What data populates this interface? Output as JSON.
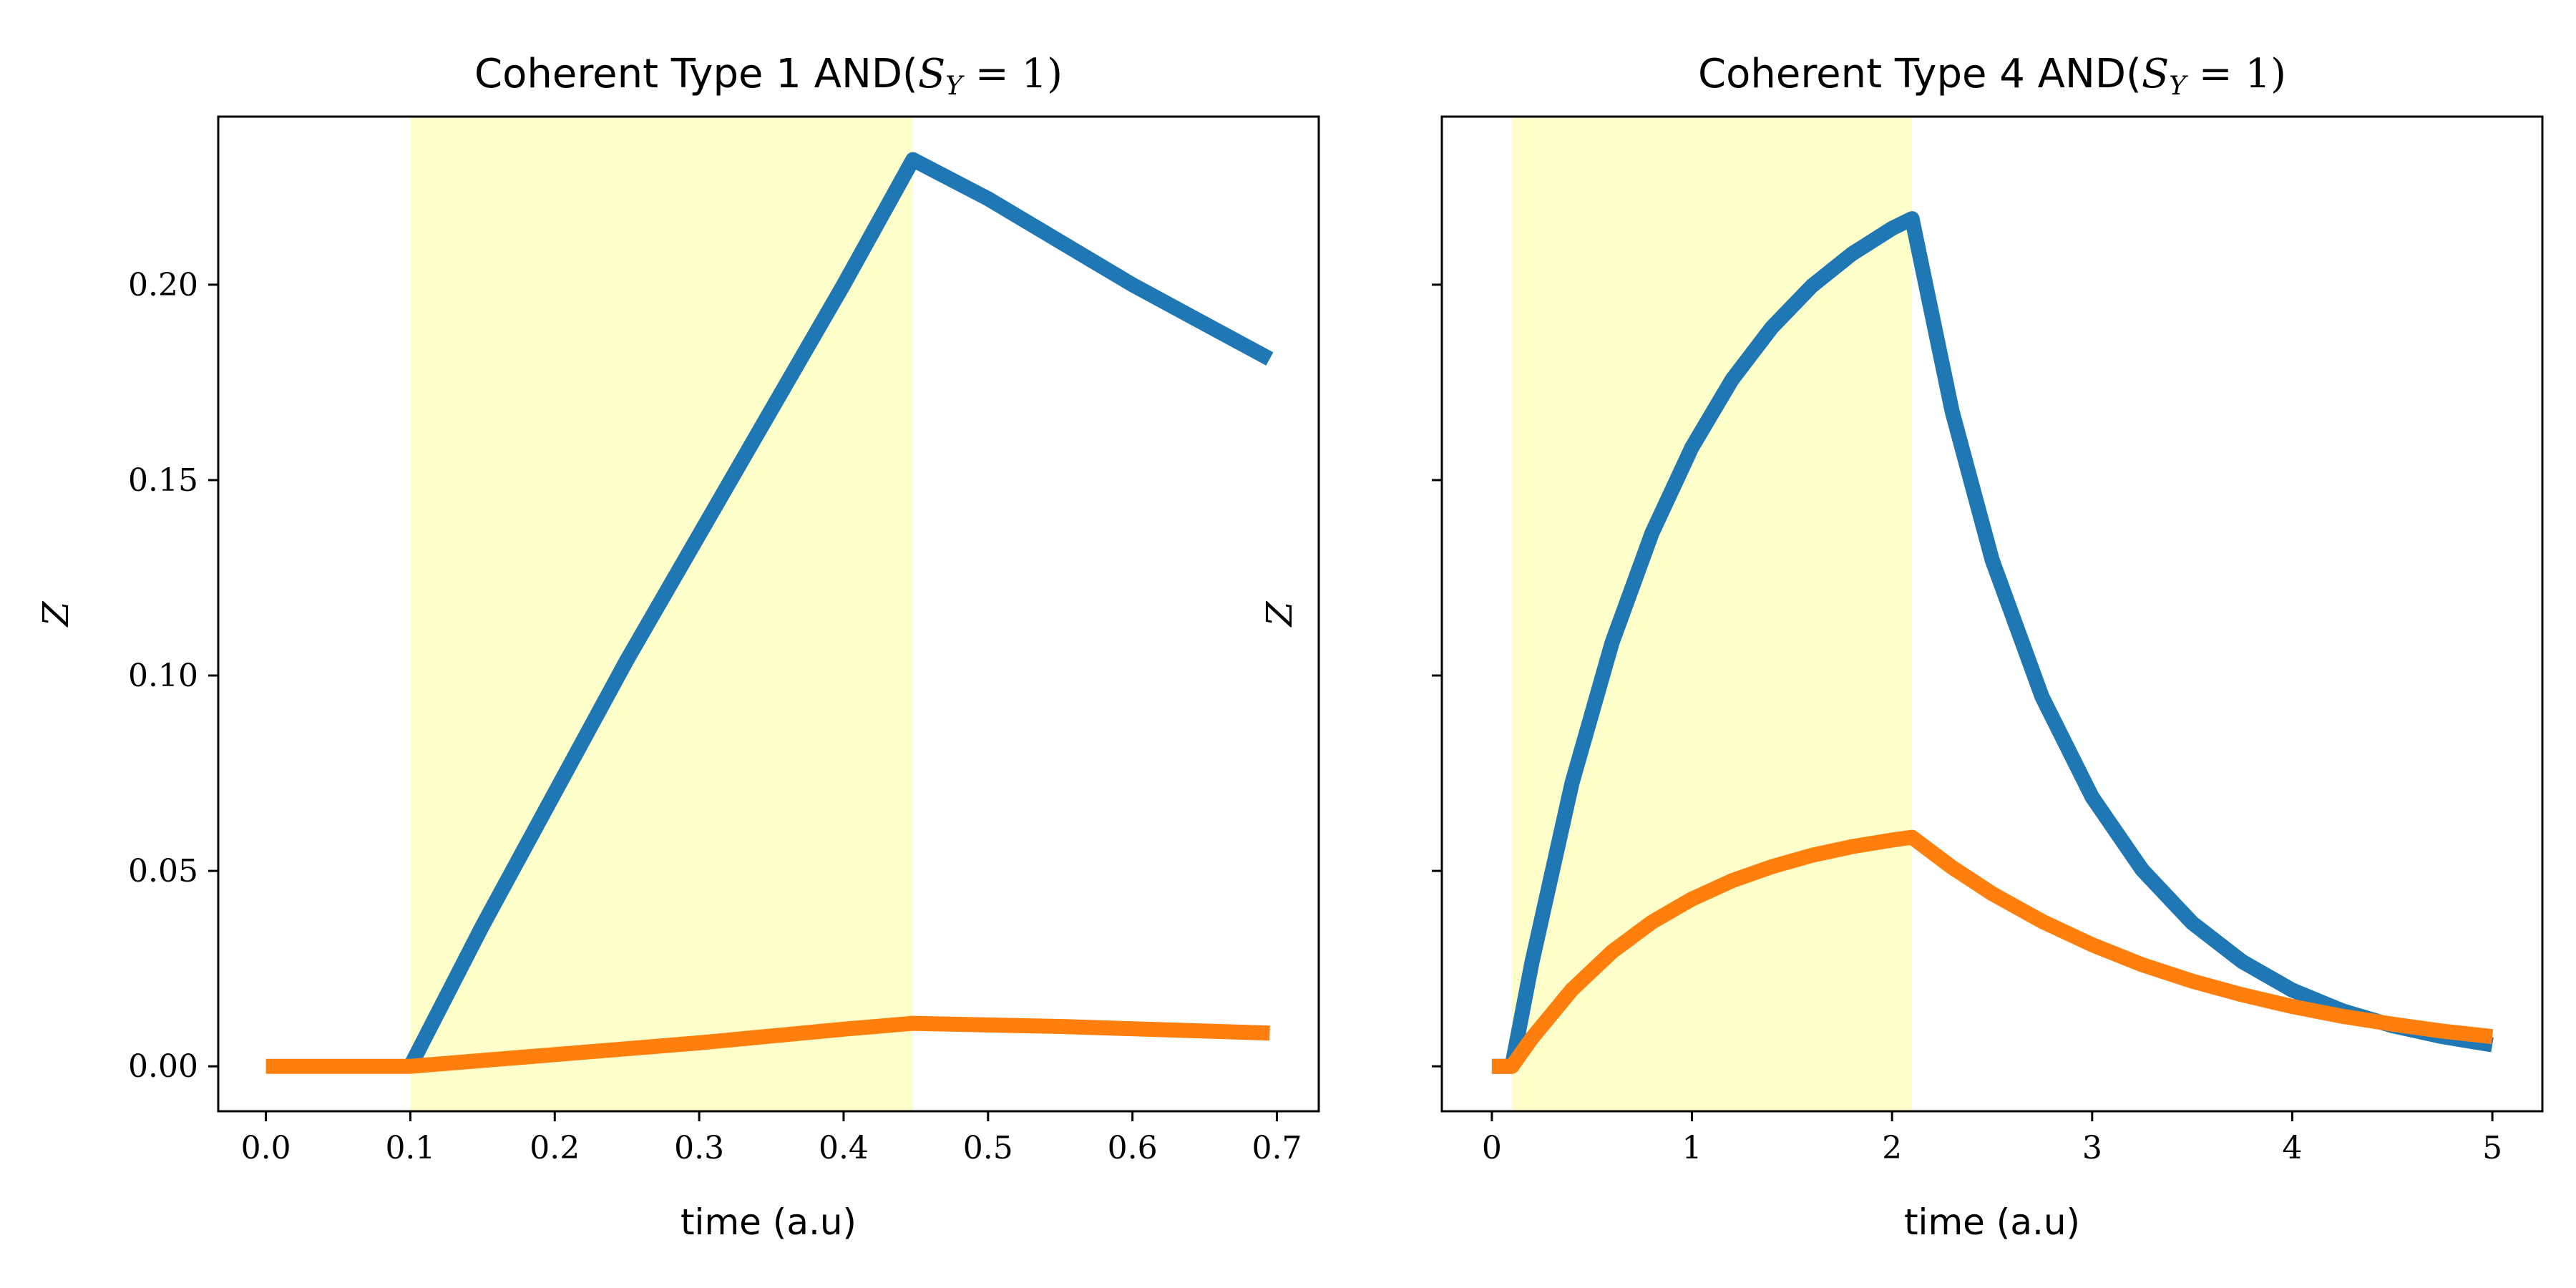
{
  "chart_data": [
    {
      "type": "line",
      "title": "Coherent Type 1 AND(",
      "title_math": "S",
      "title_math_sub": "Y",
      "title_math_rest": " = 1)",
      "xlabel": "time (a.u)",
      "ylabel": "Z",
      "xlim": [
        -0.033,
        0.729
      ],
      "ylim": [
        -0.0115,
        0.243
      ],
      "xticks": [
        0.0,
        0.1,
        0.2,
        0.3,
        0.4,
        0.5,
        0.6,
        0.7
      ],
      "xtick_labels": [
        "0.0",
        "0.1",
        "0.2",
        "0.3",
        "0.4",
        "0.5",
        "0.6",
        "0.7"
      ],
      "yticks": [
        0.0,
        0.05,
        0.1,
        0.15,
        0.2
      ],
      "ytick_labels": [
        "0.00",
        "0.05",
        "0.10",
        "0.15",
        "0.20"
      ],
      "shaded_span": [
        0.1,
        0.448
      ],
      "colors": {
        "series_1": "#1f77b4",
        "series_2": "#ff7f0e",
        "span": "#ffff99"
      },
      "series": [
        {
          "color": "#1f77b4",
          "x": [
            0.1,
            0.15,
            0.2,
            0.25,
            0.3,
            0.35,
            0.4,
            0.448,
            0.5,
            0.55,
            0.6,
            0.65,
            0.695
          ],
          "y": [
            0.0,
            0.036,
            0.07,
            0.104,
            0.136,
            0.168,
            0.2,
            0.232,
            0.222,
            0.211,
            0.2,
            0.19,
            0.181
          ]
        },
        {
          "color": "#ff7f0e",
          "x": [
            0.0,
            0.05,
            0.1,
            0.2,
            0.3,
            0.4,
            0.448,
            0.55,
            0.695
          ],
          "y": [
            0.0,
            0.0,
            0.0,
            0.003,
            0.006,
            0.0095,
            0.011,
            0.0102,
            0.0085
          ]
        }
      ]
    },
    {
      "type": "line",
      "title": "Coherent Type 4 AND(",
      "title_math": "S",
      "title_math_sub": "Y",
      "title_math_rest": " = 1)",
      "xlabel": "time (a.u)",
      "ylabel": "Z",
      "xlim": [
        -0.25,
        5.25
      ],
      "ylim": [
        -0.0115,
        0.243
      ],
      "xticks": [
        0,
        1,
        2,
        3,
        4,
        5
      ],
      "xtick_labels": [
        "0",
        "1",
        "2",
        "3",
        "4",
        "5"
      ],
      "yticks": [
        0.0,
        0.05,
        0.1,
        0.15,
        0.2
      ],
      "ytick_labels": [],
      "shaded_span": [
        0.1,
        2.1
      ],
      "colors": {
        "series_1": "#1f77b4",
        "series_2": "#ff7f0e",
        "span": "#ffff99"
      },
      "series": [
        {
          "color": "#1f77b4",
          "x": [
            0.0,
            0.1,
            0.2,
            0.4,
            0.6,
            0.8,
            1.0,
            1.2,
            1.4,
            1.6,
            1.8,
            2.0,
            2.1,
            2.3,
            2.5,
            2.75,
            3.0,
            3.25,
            3.5,
            3.75,
            4.0,
            4.25,
            4.5,
            4.75,
            5.0
          ],
          "y": [
            0.0,
            0.0,
            0.0265,
            0.0724,
            0.1083,
            0.1364,
            0.1584,
            0.1757,
            0.1891,
            0.1997,
            0.2079,
            0.2144,
            0.2169,
            0.1676,
            0.1296,
            0.0945,
            0.0689,
            0.0503,
            0.0367,
            0.0268,
            0.0195,
            0.0142,
            0.0104,
            0.0076,
            0.0055
          ]
        },
        {
          "color": "#ff7f0e",
          "x": [
            0.0,
            0.1,
            0.2,
            0.4,
            0.6,
            0.8,
            1.0,
            1.2,
            1.4,
            1.6,
            1.8,
            2.0,
            2.1,
            2.3,
            2.5,
            2.75,
            3.0,
            3.25,
            3.5,
            3.75,
            4.0,
            4.25,
            4.5,
            4.75,
            5.0
          ],
          "y": [
            0.0,
            0.0,
            0.0072,
            0.0196,
            0.0293,
            0.0369,
            0.0428,
            0.0475,
            0.0511,
            0.054,
            0.0562,
            0.0579,
            0.0586,
            0.0509,
            0.0442,
            0.0371,
            0.0311,
            0.026,
            0.0218,
            0.0183,
            0.0153,
            0.0128,
            0.0108,
            0.009,
            0.0076
          ]
        }
      ]
    }
  ]
}
